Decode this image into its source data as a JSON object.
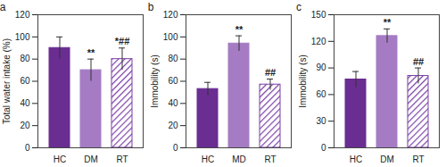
{
  "chart_data": [
    {
      "type": "bar",
      "title": "a",
      "ylabel": "Total water intake (%)",
      "categories": [
        "HC",
        "DM",
        "RT"
      ],
      "values": [
        90,
        70,
        80
      ],
      "errors": [
        10,
        10,
        10
      ],
      "colors": [
        "#6a2d91",
        "#a57cc4",
        "#7b3fa5"
      ],
      "ylim": [
        0,
        120
      ],
      "yticks": [
        0,
        20,
        40,
        60,
        80,
        100,
        120
      ],
      "annotations": [
        {
          "x": "DM",
          "text": "**"
        },
        {
          "x": "RT",
          "text": "*##"
        }
      ]
    },
    {
      "type": "bar",
      "title": "b",
      "ylabel": "Immobility (s)",
      "categories": [
        "HC",
        "MD",
        "RT"
      ],
      "values": [
        53,
        94,
        57
      ],
      "errors": [
        6,
        7,
        5
      ],
      "colors": [
        "#6a2d91",
        "#a57cc4",
        "#7b3fa5"
      ],
      "ylim": [
        0,
        120
      ],
      "yticks": [
        0,
        20,
        40,
        60,
        80,
        100,
        120
      ],
      "annotations": [
        {
          "x": "MD",
          "text": "**"
        },
        {
          "x": "RT",
          "text": "##"
        }
      ]
    },
    {
      "type": "bar",
      "title": "c",
      "ylabel": "Immobility (s)",
      "categories": [
        "HC",
        "DM",
        "RT"
      ],
      "values": [
        77,
        126,
        81
      ],
      "errors": [
        9,
        8,
        9
      ],
      "colors": [
        "#6a2d91",
        "#a57cc4",
        "#7b3fa5"
      ],
      "ylim": [
        0,
        150
      ],
      "yticks": [
        0,
        30,
        60,
        90,
        120,
        150
      ],
      "annotations": [
        {
          "x": "DM",
          "text": "**"
        },
        {
          "x": "RT",
          "text": "##"
        }
      ]
    }
  ]
}
